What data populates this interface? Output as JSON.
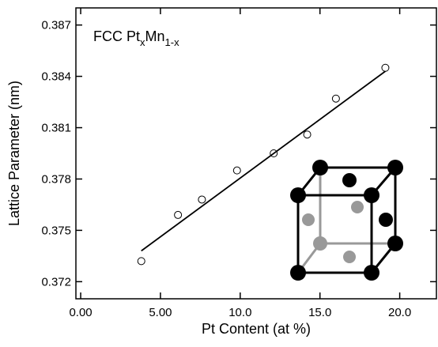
{
  "chart_data": {
    "type": "scatter",
    "annotation": {
      "base": "FCC Pt",
      "sub1": "x",
      "mid": "Mn",
      "sub2": "1-x"
    },
    "x_label": "Pt Content (at %)",
    "y_label": "Lattice Parameter (nm)",
    "series": [
      {
        "kind": "points",
        "color": "#000000",
        "x": [
          3.8,
          6.1,
          7.6,
          9.8,
          12.1,
          14.2,
          16.0,
          19.1
        ],
        "values": [
          0.3732,
          0.3759,
          0.3768,
          0.3785,
          0.3795,
          0.3806,
          0.3827,
          0.3845
        ]
      },
      {
        "kind": "fit",
        "color": "#000000",
        "x": [
          3.8,
          19.1
        ],
        "values": [
          0.3738,
          0.3843
        ]
      }
    ],
    "xlim": [
      -0.3,
      22.3
    ],
    "ylim": [
      0.371,
      0.388
    ],
    "xticks": [
      {
        "value": 0,
        "label": "0.00"
      },
      {
        "value": 5,
        "label": "5.00"
      },
      {
        "value": 10,
        "label": "10.0"
      },
      {
        "value": 15,
        "label": "15.0"
      },
      {
        "value": 20,
        "label": "20.0"
      }
    ],
    "yticks": [
      0.372,
      0.375,
      0.378,
      0.381,
      0.384,
      0.387
    ]
  }
}
